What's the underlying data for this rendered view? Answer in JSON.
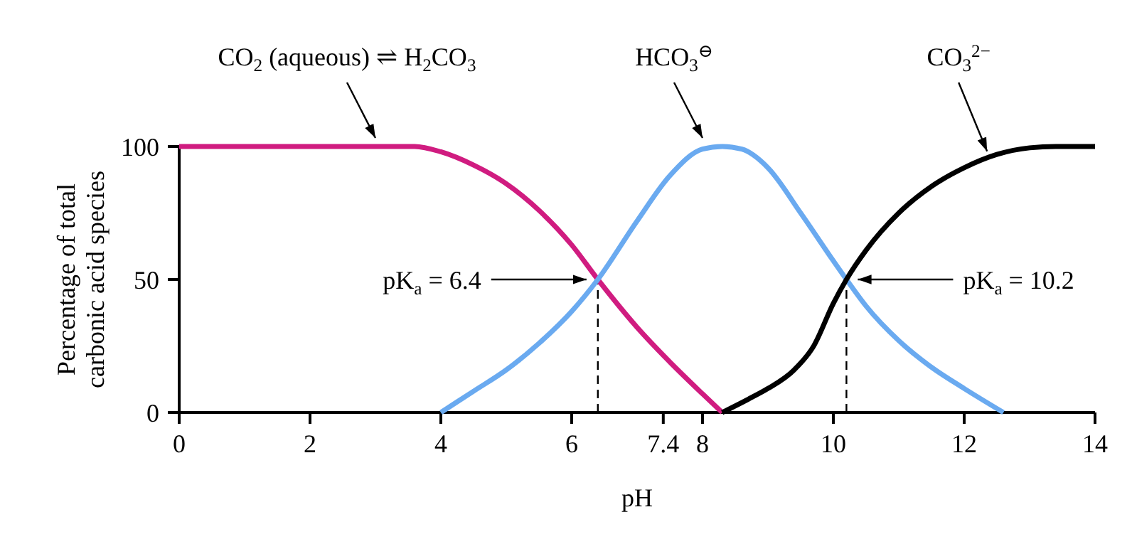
{
  "chart_data": {
    "type": "line",
    "xlabel": "pH",
    "ylabel": "Percentage of total carbonic acid species",
    "xlim": [
      0,
      14
    ],
    "xticks": [
      0,
      2,
      4,
      6,
      7.4,
      8,
      10,
      12,
      14
    ],
    "ylim": [
      0,
      100
    ],
    "yticks": [
      0,
      50,
      100
    ],
    "grid": false,
    "marker": "none",
    "line_style": "solid",
    "series": [
      {
        "color": "#d01c80",
        "x": [
          0,
          3.6,
          4,
          4.5,
          5,
          5.5,
          6,
          6.4,
          7,
          7.5,
          8,
          8.3
        ],
        "values": [
          100,
          100,
          98,
          93,
          86,
          76,
          63,
          50,
          32,
          19,
          7,
          0
        ]
      },
      {
        "color": "#6aaaf0",
        "x": [
          4,
          4.5,
          5,
          5.5,
          6,
          6.4,
          7,
          7.5,
          8,
          8.3,
          8.6,
          9,
          9.5,
          10,
          10.2,
          10.5,
          11,
          11.5,
          12,
          12.6
        ],
        "values": [
          0,
          8,
          16,
          26,
          38,
          50,
          72,
          89,
          99,
          100,
          99,
          92,
          75,
          57,
          50,
          40,
          27,
          17,
          9,
          0
        ]
      },
      {
        "color": "#000000",
        "x": [
          8.3,
          8.7,
          9,
          9.4,
          9.7,
          10,
          10.2,
          10.5,
          11,
          11.5,
          12,
          12.5,
          13,
          13.4,
          14
        ],
        "values": [
          0,
          5,
          9,
          16,
          25,
          41,
          50,
          61,
          75,
          85,
          92,
          97,
          99.5,
          100,
          100
        ]
      }
    ],
    "ref_lines": [
      {
        "axis": "x",
        "value": 6.4,
        "label": "pK$_{a}$ = 6.4",
        "line_style": "dashed"
      },
      {
        "axis": "x",
        "value": 10.2,
        "label": "pK$_{a}$ = 10.2",
        "line_style": "dashed"
      }
    ],
    "annotations": [
      {
        "text": "CO$_{2}$ (aqueous)  ⇌  H$_{2}$CO$_{3}$",
        "x": 3.0,
        "y": 100
      },
      {
        "text": "HCO$_{3}$$^{⊖}$",
        "x": 8.0,
        "y": 100
      },
      {
        "text": "CO$_{3}$$^{2−}$",
        "x": 12.35,
        "y": 95
      }
    ]
  }
}
